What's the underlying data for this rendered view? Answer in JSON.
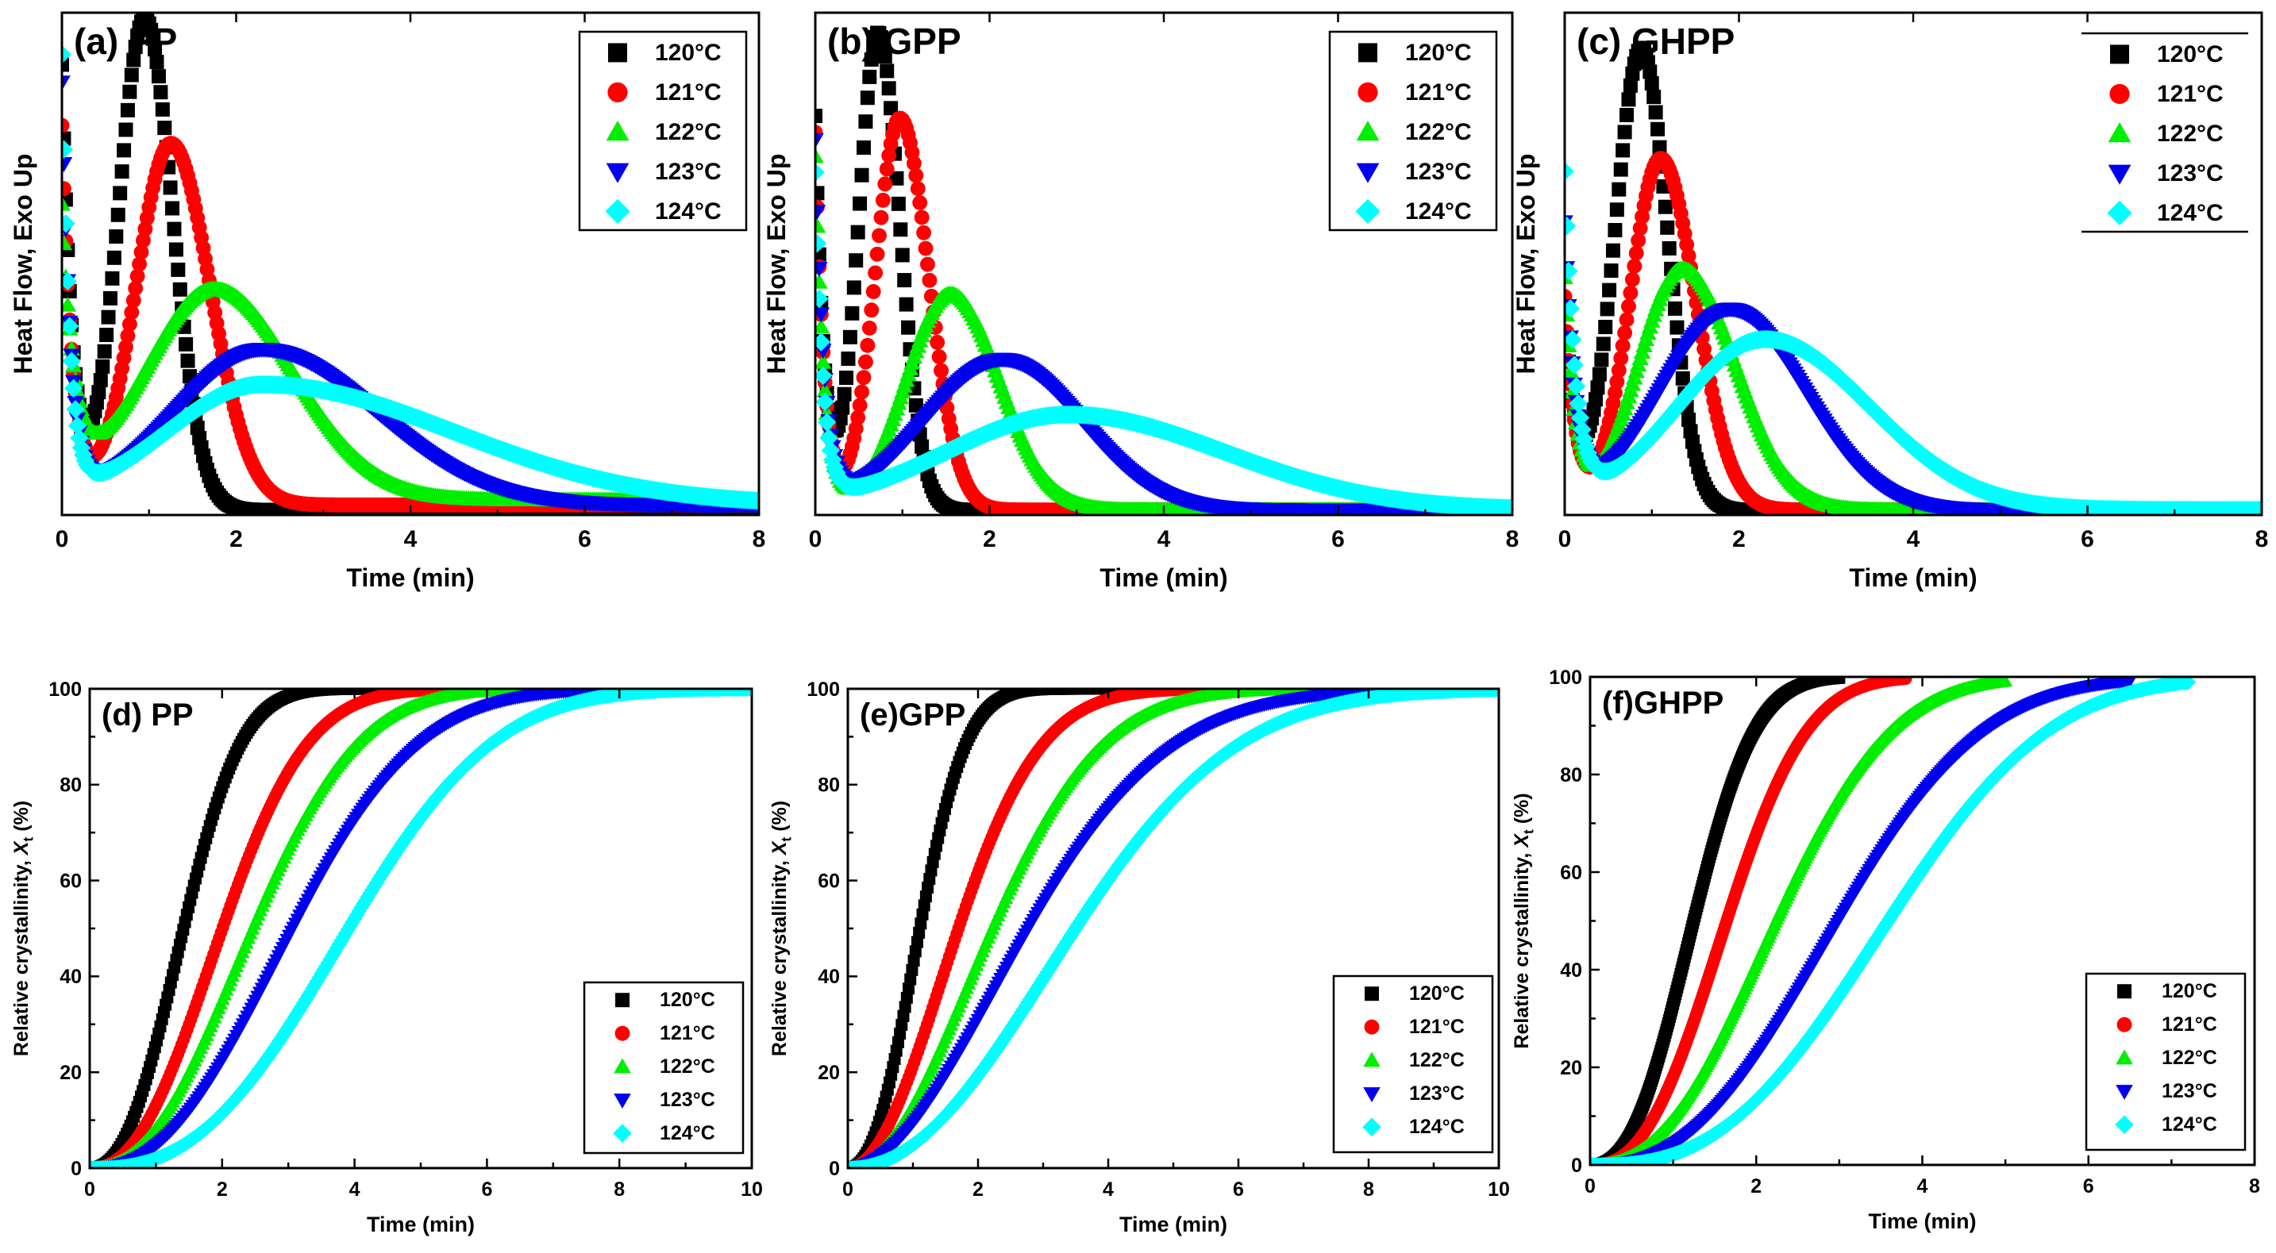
{
  "colors": {
    "120": "#000000",
    "121": "#ff0000",
    "122": "#00ee00",
    "123": "#0000ee",
    "124": "#00ffff"
  },
  "chart_data": [
    {
      "id": "a",
      "title": "(a) PP",
      "type": "scatter",
      "kind": "heatflow",
      "xlabel": "Time (min)",
      "ylabel": "Heat Flow, Exo Up",
      "xlim": [
        0,
        8
      ],
      "ylim": [
        0,
        1
      ],
      "xticks": [
        0,
        2,
        4,
        6,
        8
      ],
      "yticks": [],
      "legend_pos": "top-right",
      "legend_style": "box",
      "series": [
        {
          "name": "120°C",
          "marker": "square",
          "color": "#000000",
          "params": {
            "base": 0.01,
            "h0": 0.88,
            "tau": 0.12,
            "A": 0.98,
            "tp": 0.95,
            "wl": 0.3,
            "wr": 0.32
          }
        },
        {
          "name": "121°C",
          "marker": "circle",
          "color": "#ff0000",
          "params": {
            "base": 0.02,
            "h0": 0.75,
            "tau": 0.12,
            "A": 0.72,
            "tp": 1.25,
            "wl": 0.4,
            "wr": 0.45
          }
        },
        {
          "name": "122°C",
          "marker": "triangle-up",
          "color": "#00ee00",
          "params": {
            "base": 0.03,
            "h0": 0.55,
            "tau": 0.14,
            "A": 0.42,
            "tp": 1.75,
            "wl": 0.8,
            "wr": 0.9
          }
        },
        {
          "name": "123°C",
          "marker": "triangle-down",
          "color": "#0000ee",
          "params": {
            "base": 0.02,
            "h0": 0.82,
            "tau": 0.1,
            "A": 0.31,
            "tp": 2.3,
            "wl": 1.0,
            "wr": 1.3
          }
        },
        {
          "name": "124°C",
          "marker": "diamond",
          "color": "#00ffff",
          "params": {
            "base": 0.02,
            "h0": 0.87,
            "tau": 0.09,
            "A": 0.24,
            "tp": 2.3,
            "wl": 1.1,
            "wr": 2.2
          }
        }
      ]
    },
    {
      "id": "b",
      "title": "(b) GPP",
      "type": "scatter",
      "kind": "heatflow",
      "xlabel": "Time (min)",
      "ylabel": "Heat Flow, Exo Up",
      "xlim": [
        0,
        8
      ],
      "ylim": [
        0,
        1
      ],
      "xticks": [
        0,
        2,
        4,
        6,
        8
      ],
      "yticks": [],
      "legend_pos": "top-right",
      "legend_style": "box",
      "series": [
        {
          "name": "120°C",
          "marker": "square",
          "color": "#000000",
          "params": {
            "base": 0.01,
            "h0": 0.78,
            "tau": 0.1,
            "A": 0.95,
            "tp": 0.72,
            "wl": 0.22,
            "wr": 0.25
          }
        },
        {
          "name": "121°C",
          "marker": "circle",
          "color": "#ff0000",
          "params": {
            "base": 0.01,
            "h0": 0.75,
            "tau": 0.1,
            "A": 0.78,
            "tp": 0.97,
            "wl": 0.28,
            "wr": 0.33
          }
        },
        {
          "name": "122°C",
          "marker": "triangle-up",
          "color": "#00ee00",
          "params": {
            "base": 0.01,
            "h0": 0.7,
            "tau": 0.1,
            "A": 0.43,
            "tp": 1.55,
            "wl": 0.5,
            "wr": 0.55
          }
        },
        {
          "name": "123°C",
          "marker": "triangle-down",
          "color": "#0000ee",
          "params": {
            "base": 0.01,
            "h0": 0.72,
            "tau": 0.1,
            "A": 0.3,
            "tp": 2.15,
            "wl": 0.9,
            "wr": 0.9
          }
        },
        {
          "name": "124°C",
          "marker": "diamond",
          "color": "#00ffff",
          "params": {
            "base": 0.01,
            "h0": 0.65,
            "tau": 0.09,
            "A": 0.19,
            "tp": 2.9,
            "wl": 1.4,
            "wr": 1.8
          }
        }
      ]
    },
    {
      "id": "c",
      "title": "(c) GHPP",
      "type": "scatter",
      "kind": "heatflow",
      "xlabel": "Time (min)",
      "ylabel": "Heat Flow, Exo Up",
      "xlim": [
        0,
        8
      ],
      "ylim": [
        0,
        1
      ],
      "xticks": [
        0,
        2,
        4,
        6,
        8
      ],
      "yticks": [],
      "legend_pos": "top-right",
      "legend_style": "lines",
      "series": [
        {
          "name": "120°C",
          "marker": "square",
          "color": "#000000",
          "params": {
            "base": 0.01,
            "h0": 0.4,
            "tau": 0.12,
            "A": 0.92,
            "tp": 0.88,
            "wl": 0.3,
            "wr": 0.3
          }
        },
        {
          "name": "121°C",
          "marker": "circle",
          "color": "#ff0000",
          "params": {
            "base": 0.01,
            "h0": 0.42,
            "tau": 0.12,
            "A": 0.7,
            "tp": 1.1,
            "wl": 0.35,
            "wr": 0.4
          }
        },
        {
          "name": "122°C",
          "marker": "triangle-up",
          "color": "#00ee00",
          "params": {
            "base": 0.01,
            "h0": 0.45,
            "tau": 0.12,
            "A": 0.48,
            "tp": 1.35,
            "wl": 0.5,
            "wr": 0.6
          }
        },
        {
          "name": "123°C",
          "marker": "triangle-down",
          "color": "#0000ee",
          "params": {
            "base": 0.01,
            "h0": 0.55,
            "tau": 0.12,
            "A": 0.4,
            "tp": 1.9,
            "wl": 0.8,
            "wr": 0.85
          }
        },
        {
          "name": "124°C",
          "marker": "diamond",
          "color": "#00ffff",
          "params": {
            "base": 0.01,
            "h0": 0.65,
            "tau": 0.12,
            "A": 0.34,
            "tp": 2.3,
            "wl": 1.0,
            "wr": 1.2
          }
        }
      ]
    },
    {
      "id": "d",
      "title": "(d) PP",
      "type": "scatter",
      "kind": "crystallinity",
      "xlabel": "Time (min)",
      "ylabel": "Relative crystallinity, X_t (%)",
      "xlim": [
        0,
        10
      ],
      "ylim": [
        0,
        100
      ],
      "xticks": [
        0,
        2,
        4,
        6,
        8,
        10
      ],
      "yticks": [
        0,
        20,
        40,
        60,
        80,
        100
      ],
      "legend_pos": "bottom-right",
      "legend_style": "box",
      "series": [
        {
          "name": "120°C",
          "marker": "square",
          "color": "#000000",
          "params": {
            "k": 0.3,
            "n": 2.4,
            "tend": 8.0
          }
        },
        {
          "name": "121°C",
          "marker": "circle",
          "color": "#ff0000",
          "params": {
            "k": 0.14,
            "n": 2.3,
            "tend": 8.5
          }
        },
        {
          "name": "122°C",
          "marker": "triangle-up",
          "color": "#00ee00",
          "params": {
            "k": 0.087,
            "n": 2.3,
            "tend": 9.0
          }
        },
        {
          "name": "123°C",
          "marker": "triangle-down",
          "color": "#0000ee",
          "params": {
            "k": 0.05,
            "n": 2.35,
            "tend": 9.5
          }
        },
        {
          "name": "124°C",
          "marker": "diamond",
          "color": "#00ffff",
          "params": {
            "k": 0.02,
            "n": 2.6,
            "tend": 10.0
          }
        }
      ]
    },
    {
      "id": "e",
      "title": "(e)GPP",
      "type": "scatter",
      "kind": "crystallinity",
      "xlabel": "Time (min)",
      "ylabel": "Relative crystallinity, X_t (%)",
      "xlim": [
        0,
        10
      ],
      "ylim": [
        0,
        100
      ],
      "xticks": [
        0,
        2,
        4,
        6,
        8,
        10
      ],
      "yticks": [
        0,
        20,
        40,
        60,
        80,
        100
      ],
      "legend_pos": "bottom-right",
      "legend_style": "box",
      "series": [
        {
          "name": "120°C",
          "marker": "square",
          "color": "#000000",
          "params": {
            "k": 0.55,
            "n": 2.3,
            "tend": 8.0
          }
        },
        {
          "name": "121°C",
          "marker": "circle",
          "color": "#ff0000",
          "params": {
            "k": 0.24,
            "n": 2.0,
            "tend": 8.5
          }
        },
        {
          "name": "122°C",
          "marker": "triangle-up",
          "color": "#00ee00",
          "params": {
            "k": 0.14,
            "n": 2.0,
            "tend": 9.0
          }
        },
        {
          "name": "123°C",
          "marker": "triangle-down",
          "color": "#0000ee",
          "params": {
            "k": 0.1,
            "n": 1.9,
            "tend": 9.5
          }
        },
        {
          "name": "124°C",
          "marker": "diamond",
          "color": "#00ffff",
          "params": {
            "k": 0.05,
            "n": 2.1,
            "tend": 10.0
          }
        }
      ]
    },
    {
      "id": "f",
      "title": "(f)GHPP",
      "type": "scatter",
      "kind": "crystallinity",
      "xlabel": "Time (min)",
      "ylabel": "Relative crystallinity, X_t (%)",
      "xlim": [
        0,
        8
      ],
      "ylim": [
        0,
        100
      ],
      "xticks": [
        0,
        2,
        4,
        6,
        8
      ],
      "yticks": [
        0,
        20,
        40,
        60,
        80,
        100
      ],
      "legend_pos": "bottom-right",
      "legend_style": "box",
      "series": [
        {
          "name": "120°C",
          "marker": "square",
          "color": "#000000",
          "params": {
            "k": 0.4,
            "n": 2.5,
            "tend": 3.0
          }
        },
        {
          "name": "121°C",
          "marker": "circle",
          "color": "#ff0000",
          "params": {
            "k": 0.2,
            "n": 2.5,
            "tend": 3.8
          }
        },
        {
          "name": "122°C",
          "marker": "triangle-up",
          "color": "#00ee00",
          "params": {
            "k": 0.1,
            "n": 2.4,
            "tend": 5.0
          }
        },
        {
          "name": "123°C",
          "marker": "triangle-down",
          "color": "#0000ee",
          "params": {
            "k": 0.045,
            "n": 2.5,
            "tend": 6.5
          }
        },
        {
          "name": "124°C",
          "marker": "diamond",
          "color": "#00ffff",
          "params": {
            "k": 0.022,
            "n": 2.7,
            "tend": 7.2
          }
        }
      ]
    }
  ]
}
